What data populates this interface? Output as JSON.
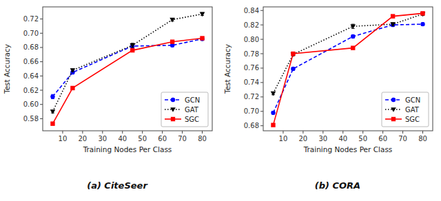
{
  "chart_data": [
    {
      "type": "line",
      "title": "(a) CiteSeer",
      "x": [
        5,
        15,
        45,
        65,
        80
      ],
      "xlabel": "Training Nodes Per Class",
      "ylabel": "Test Accuracy",
      "xlim": [
        0,
        85
      ],
      "xticks": [
        10,
        20,
        30,
        40,
        50,
        60,
        70,
        80
      ],
      "ylim": [
        0.563,
        0.737
      ],
      "yticks": [
        0.58,
        {
          "value": 0.6,
          "label": "0.60"
        },
        0.62,
        0.64,
        0.66,
        0.68,
        {
          "value": 0.7,
          "label": "0.70"
        },
        0.72
      ],
      "grid": false,
      "legend": "lower right",
      "series": [
        {
          "name": "GCN",
          "color": "#0000FF",
          "marker": "circle",
          "line_style": "dashed",
          "values": [
            0.611,
            0.645,
            0.682,
            0.683,
            0.692
          ],
          "errors": [
            0.003,
            0.002,
            0.003,
            0.002,
            0.002
          ]
        },
        {
          "name": "GAT",
          "color": "#000000",
          "marker": "triangle-down",
          "line_style": "dotted",
          "values": [
            0.59,
            0.648,
            0.683,
            0.719,
            0.727
          ],
          "errors": [
            0.002,
            0.002,
            0.003,
            0.002,
            0.002
          ]
        },
        {
          "name": "SGC",
          "color": "#FF0000",
          "marker": "square",
          "line_style": "solid",
          "values": [
            0.573,
            0.623,
            0.676,
            0.688,
            0.693
          ],
          "errors": [
            0.001,
            0.001,
            0.001,
            0.001,
            0.001
          ]
        }
      ]
    },
    {
      "type": "line",
      "title": "(b) CORA",
      "x": [
        5,
        15,
        45,
        65,
        80
      ],
      "xlabel": "Training Nodes Per Class",
      "ylabel": "Test Accuracy",
      "xlim": [
        0,
        85
      ],
      "xticks": [
        10,
        20,
        30,
        40,
        50,
        60,
        70,
        80
      ],
      "ylim": [
        0.673,
        0.845
      ],
      "yticks": [
        0.68,
        {
          "value": 0.7,
          "label": "0.70"
        },
        0.72,
        0.74,
        0.76,
        0.78,
        {
          "value": 0.8,
          "label": "0.80"
        },
        0.82,
        0.84
      ],
      "grid": false,
      "legend": "lower right",
      "series": [
        {
          "name": "GCN",
          "color": "#0000FF",
          "marker": "circle",
          "line_style": "dashed",
          "values": [
            0.698,
            0.759,
            0.804,
            0.82,
            0.821
          ],
          "errors": [
            0.002,
            0.002,
            0.002,
            0.002,
            0.002
          ]
        },
        {
          "name": "GAT",
          "color": "#000000",
          "marker": "triangle-down",
          "line_style": "dotted",
          "values": [
            0.725,
            0.779,
            0.818,
            0.821,
            0.835
          ],
          "errors": [
            0.002,
            0.002,
            0.003,
            0.002,
            0.002
          ]
        },
        {
          "name": "SGC",
          "color": "#FF0000",
          "marker": "square",
          "line_style": "solid",
          "values": [
            0.681,
            0.78,
            0.788,
            0.832,
            0.836
          ],
          "errors": [
            0.001,
            0.001,
            0.001,
            0.002,
            0.001
          ]
        }
      ]
    }
  ]
}
